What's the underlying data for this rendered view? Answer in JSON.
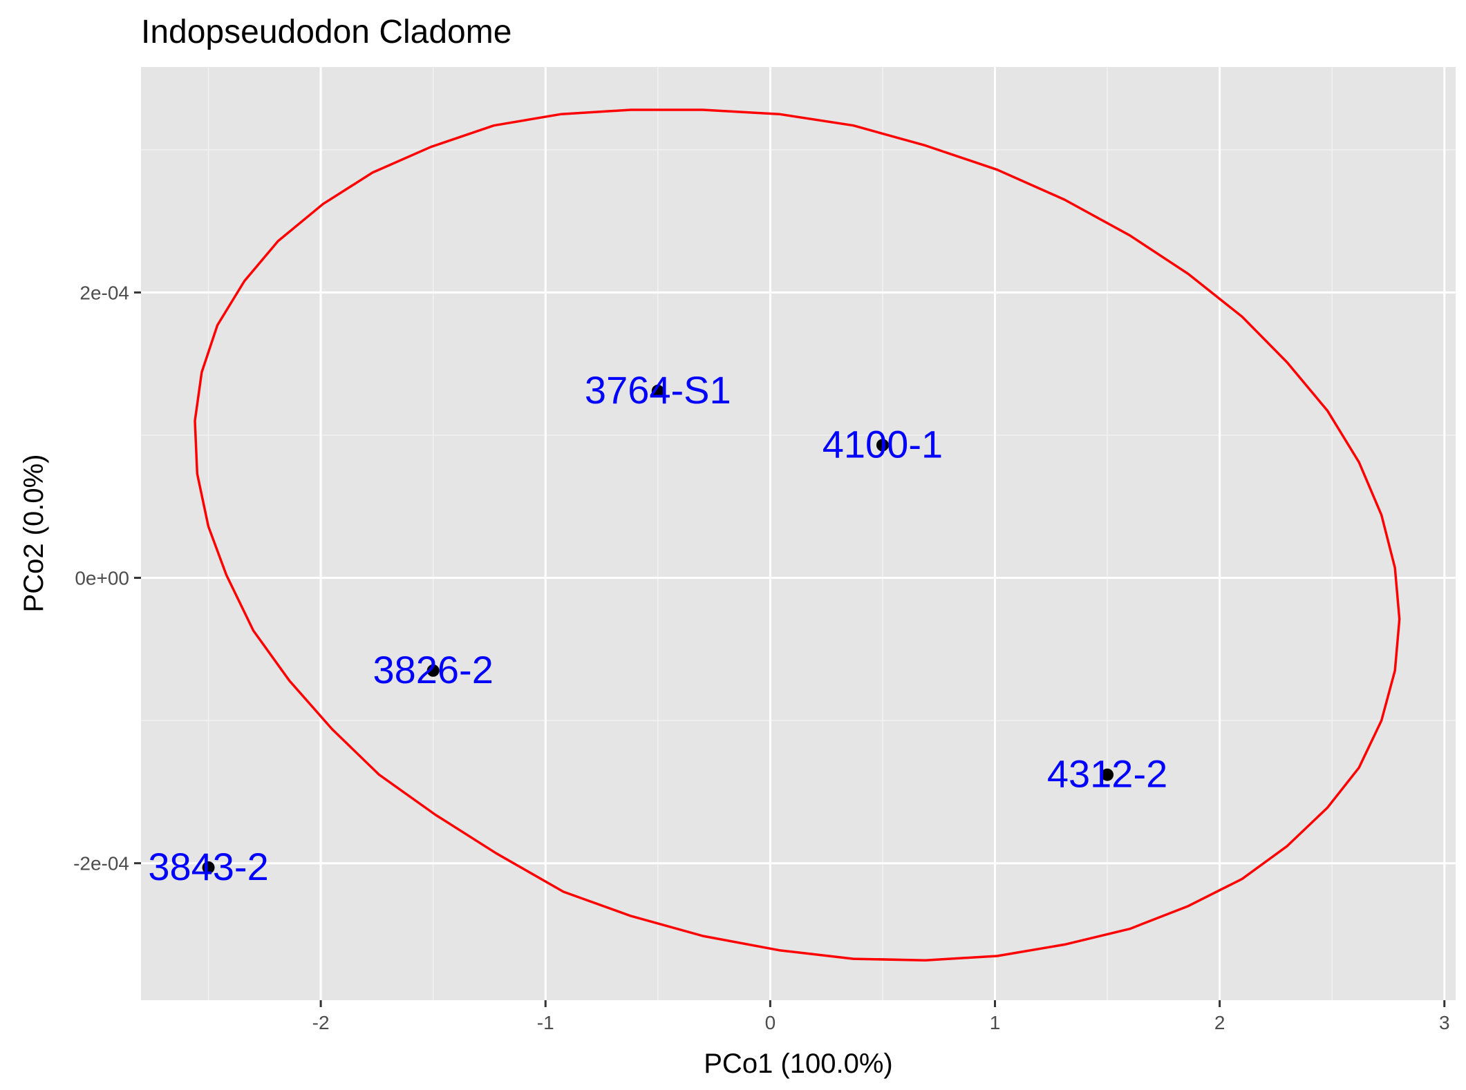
{
  "chart_data": {
    "type": "scatter",
    "title": "Indopseudodon Cladome",
    "xlabel": "PCo1 (100.0%)",
    "ylabel": "PCo2 (0.0%)",
    "xlim": [
      -2.8,
      3.05
    ],
    "ylim": [
      -0.000296,
      0.000358
    ],
    "x_ticks": [
      {
        "value": -2,
        "label": "-2"
      },
      {
        "value": -1,
        "label": "-1"
      },
      {
        "value": 0,
        "label": "0"
      },
      {
        "value": 1,
        "label": "1"
      },
      {
        "value": 2,
        "label": "2"
      },
      {
        "value": 3,
        "label": "3"
      }
    ],
    "y_ticks": [
      {
        "value": -0.0002,
        "label": "-2e-04"
      },
      {
        "value": 0,
        "label": "0e+00"
      },
      {
        "value": 0.0002,
        "label": "2e-04"
      }
    ],
    "grid": true,
    "points": [
      {
        "label": "3764-S1",
        "x": -0.5,
        "y": 0.000131
      },
      {
        "label": "4100-1",
        "x": 0.5,
        "y": 9.3e-05
      },
      {
        "label": "3826-2",
        "x": -1.5,
        "y": -6.5e-05
      },
      {
        "label": "4312-2",
        "x": 1.5,
        "y": -0.000138
      },
      {
        "label": "3843-2",
        "x": -2.5,
        "y": -0.000203
      }
    ],
    "ellipse": {
      "x": [
        -0.3,
        0.04,
        0.37,
        0.69,
        1.01,
        1.31,
        1.6,
        1.86,
        2.1,
        2.3,
        2.48,
        2.62,
        2.72,
        2.78,
        2.8,
        2.78,
        2.72,
        2.62,
        2.48,
        2.3,
        2.1,
        1.86,
        1.6,
        1.31,
        1.01,
        0.69,
        0.37,
        0.04,
        -0.3,
        -0.62,
        -0.92,
        -1.22,
        -1.49,
        -1.74,
        -1.95,
        -2.14,
        -2.3,
        -2.42,
        -2.5,
        -2.55,
        -2.56,
        -2.53,
        -2.46,
        -2.34,
        -2.19,
        -1.99,
        -1.77,
        -1.51,
        -1.23,
        -0.93,
        -0.62,
        -0.3
      ],
      "y": [
        0.000328,
        0.000325,
        0.000317,
        0.000303,
        0.000286,
        0.000265,
        0.00024,
        0.000213,
        0.000183,
        0.000151,
        0.000117,
        8.1e-05,
        4.4e-05,
        7e-06,
        -2.9e-05,
        -6.5e-05,
        -0.0001,
        -0.000133,
        -0.000161,
        -0.000188,
        -0.000211,
        -0.00023,
        -0.000246,
        -0.000257,
        -0.000265,
        -0.000268,
        -0.000267,
        -0.000261,
        -0.000251,
        -0.000237,
        -0.00022,
        -0.000193,
        -0.000166,
        -0.000138,
        -0.000106,
        -7.2e-05,
        -3.7e-05,
        2e-06,
        3.6e-05,
        7.3e-05,
        0.00011,
        0.000144,
        0.000177,
        0.000208,
        0.000236,
        0.000262,
        0.000284,
        0.000302,
        0.000317,
        0.000325,
        0.000328,
        0.000328
      ]
    },
    "colors": {
      "panel_background": "#e5e5e5",
      "grid_major": "#ffffff",
      "grid_minor": "#f2f2f2",
      "point": "#000000",
      "point_label": "#0000ff",
      "ellipse": "#ff0000",
      "tick": "#333333"
    }
  }
}
